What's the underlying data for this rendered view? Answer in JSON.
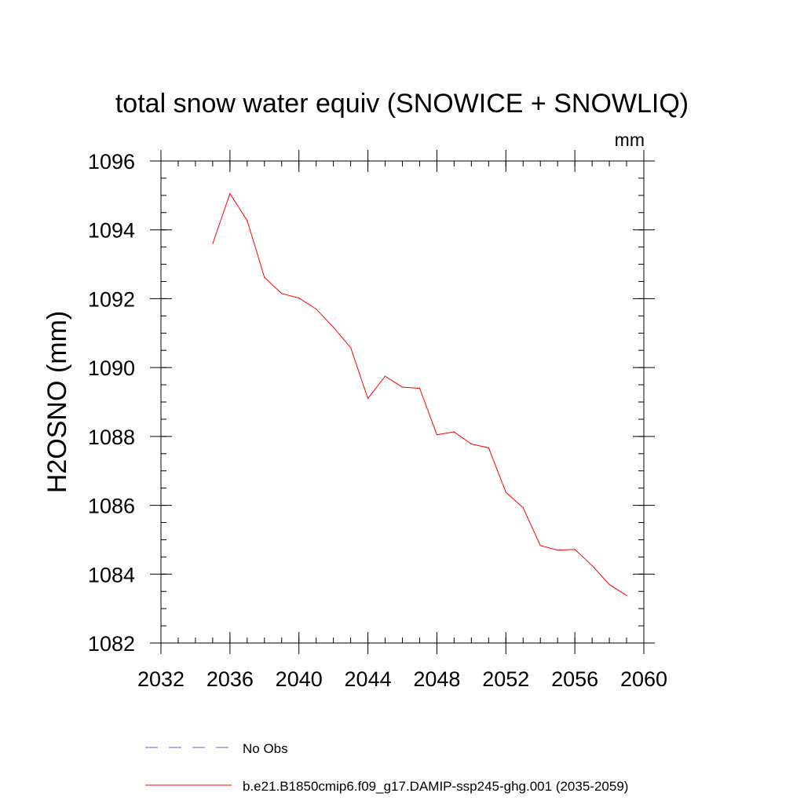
{
  "chart_data": {
    "type": "line",
    "title": "total snow water equiv (SNOWICE + SNOWLIQ)",
    "units_label": "mm",
    "ylabel": "H2OSNO  (mm)",
    "xlabel": "",
    "xlim": [
      2032,
      2060
    ],
    "ylim": [
      1082,
      1096
    ],
    "x_ticks": [
      2032,
      2036,
      2040,
      2044,
      2048,
      2052,
      2056,
      2060
    ],
    "y_ticks": [
      1082,
      1084,
      1086,
      1088,
      1090,
      1092,
      1094,
      1096
    ],
    "grid": false,
    "legend_position": "bottom",
    "series": [
      {
        "name": "b.e21.B1850cmip6.f09_g17.DAMIP-ssp245-ghg.001 (2035-2059)",
        "color": "#ff0000",
        "style": "solid",
        "x": [
          2035,
          2036,
          2037,
          2038,
          2039,
          2040,
          2041,
          2042,
          2043,
          2044,
          2045,
          2046,
          2047,
          2048,
          2049,
          2050,
          2051,
          2052,
          2053,
          2054,
          2055,
          2056,
          2057,
          2058,
          2059
        ],
        "y": [
          1093.6,
          1095.05,
          1094.27,
          1092.62,
          1092.15,
          1092.02,
          1091.7,
          1091.17,
          1090.58,
          1089.1,
          1089.75,
          1089.43,
          1089.4,
          1088.05,
          1088.13,
          1087.78,
          1087.67,
          1086.38,
          1085.93,
          1084.83,
          1084.7,
          1084.72,
          1084.25,
          1083.7,
          1083.38
        ]
      }
    ],
    "legend": [
      {
        "label": "No Obs",
        "color": "#6b5fb5",
        "style": "dashed"
      },
      {
        "label": "b.e21.B1850cmip6.f09_g17.DAMIP-ssp245-ghg.001 (2035-2059)",
        "color": "#ff0000",
        "style": "solid"
      }
    ]
  }
}
